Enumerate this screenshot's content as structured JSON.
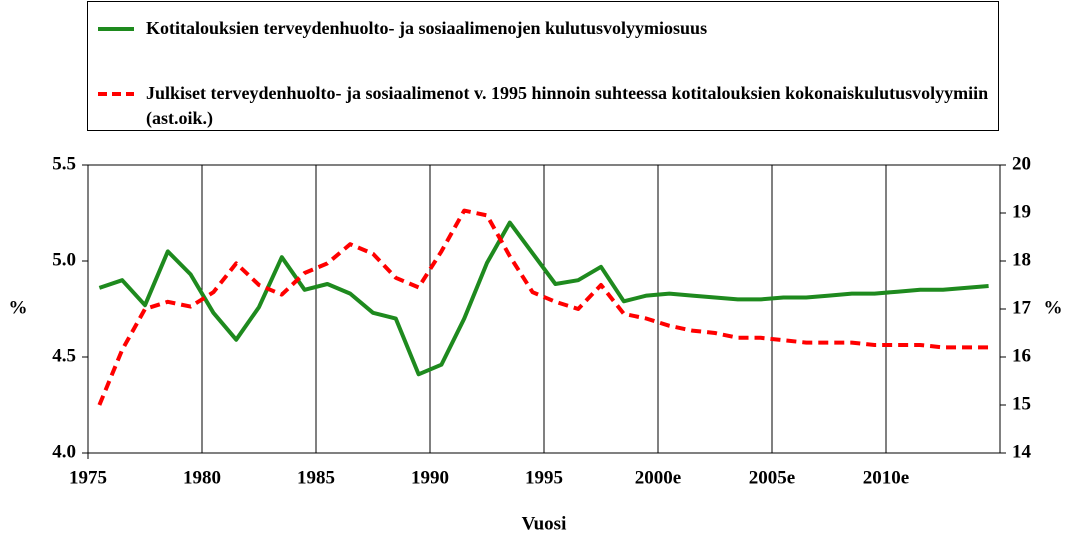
{
  "chart_data": {
    "type": "line",
    "x_label": "Vuosi",
    "y_label": "%",
    "y2_label": "%",
    "x": [
      1975.5,
      1976.5,
      1977.5,
      1978.5,
      1979.5,
      1980.5,
      1981.5,
      1982.5,
      1983.5,
      1984.5,
      1985.5,
      1986.5,
      1987.5,
      1988.5,
      1989.5,
      1990.5,
      1991.5,
      1992.5,
      1993.5,
      1994.5,
      1995.5,
      1996.5,
      1997.5,
      1998.5,
      1999.5,
      2000.5,
      2001.5,
      2002.5,
      2003.5,
      2004.5,
      2005.5,
      2006.5,
      2007.5,
      2008.5,
      2009.5,
      2010.5,
      2011.5,
      2012.5,
      2013.5,
      2014.5
    ],
    "series": [
      {
        "name": "Kotitalouksien terveydenhuolto- ja sosiaalimenojen kulutusvolyymiosuus",
        "color": "#1e8a1e",
        "dash": false,
        "values": [
          4.86,
          4.9,
          4.77,
          5.05,
          4.93,
          4.73,
          4.59,
          4.76,
          5.02,
          4.85,
          4.88,
          4.83,
          4.73,
          4.7,
          4.41,
          4.46,
          4.7,
          4.99,
          5.2,
          5.04,
          4.88,
          4.9,
          4.97,
          4.79,
          4.82,
          4.83,
          4.82,
          4.81,
          4.8,
          4.8,
          4.81,
          4.81,
          4.82,
          4.83,
          4.83,
          4.84,
          4.85,
          4.85,
          4.86,
          4.87
        ]
      },
      {
        "name": "Julkiset terveydenhuolto- ja sosiaalimenot v. 1995 hinnoin suhteessa kotitalouksien kokonaiskulutusvolyymiin (ast.oik.)",
        "color": "#ff0000",
        "dash": true,
        "axis": "y2",
        "values": [
          15.0,
          16.15,
          17.0,
          17.15,
          17.05,
          17.35,
          17.95,
          17.5,
          17.3,
          17.75,
          17.95,
          18.35,
          18.15,
          17.65,
          17.45,
          18.2,
          19.05,
          18.95,
          18.1,
          17.35,
          17.15,
          17.0,
          17.5,
          16.9,
          16.8,
          16.65,
          16.55,
          16.5,
          16.4,
          16.4,
          16.35,
          16.3,
          16.3,
          16.3,
          16.25,
          16.25,
          16.25,
          16.2,
          16.2,
          16.2
        ]
      }
    ],
    "xlim": [
      1975,
      2015
    ],
    "xticks": [
      1975,
      1980,
      1985,
      1990,
      1995,
      {
        "value": 2000,
        "label": "2000e"
      },
      {
        "value": 2005,
        "label": "2005e"
      },
      {
        "value": 2010,
        "label": "2010e"
      }
    ],
    "ylim": [
      4,
      5.5
    ],
    "yticks": [
      {
        "value": 4,
        "label": "4.0"
      },
      4.5,
      {
        "value": 5,
        "label": "5.0"
      },
      5.5
    ],
    "y2lim": [
      14,
      20
    ],
    "y2ticks": [
      14,
      15,
      16,
      17,
      18,
      19,
      20
    ],
    "xgrid": true,
    "legend": "top"
  }
}
